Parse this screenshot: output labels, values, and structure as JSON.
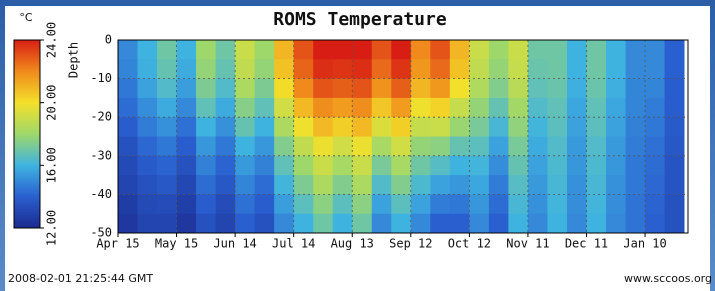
{
  "chart_data": {
    "type": "heatmap",
    "title": "ROMS Temperature",
    "ylabel": "Depth",
    "colorbar_label": "°C",
    "timestamp": "2008-02-01 21:25:44 GMT",
    "source": "www.sccoos.org",
    "x": [
      5,
      15,
      25,
      35,
      45,
      55,
      65,
      75,
      85,
      95,
      105,
      115,
      125,
      135,
      145,
      155,
      165,
      175,
      185,
      195,
      205,
      215,
      225,
      235,
      245,
      255,
      265,
      275,
      285
    ],
    "y": [
      -2.5,
      -7.5,
      -12.5,
      -17.5,
      -22.5,
      -27.5,
      -32.5,
      -37.5,
      -42.5,
      -47.5
    ],
    "values": [
      [
        15,
        14.9,
        14.6,
        14.3,
        13.9,
        13.5,
        13.2,
        13,
        12.7,
        12.5
      ],
      [
        16,
        15.9,
        15.6,
        15.1,
        14.7,
        14.2,
        13.8,
        13.5,
        13.2,
        13
      ],
      [
        17,
        16.8,
        16.4,
        15.8,
        15.2,
        14.6,
        14.1,
        13.7,
        13.3,
        13
      ],
      [
        16,
        15.8,
        15.5,
        15,
        14.4,
        13.9,
        13.5,
        13.1,
        12.8,
        12.5
      ],
      [
        18,
        17.8,
        17.3,
        16.7,
        16,
        15.3,
        14.8,
        14.3,
        13.9,
        13.5
      ],
      [
        17,
        16.8,
        16.4,
        15.8,
        15.2,
        14.6,
        14.1,
        13.7,
        13.3,
        13
      ],
      [
        19,
        18.8,
        18.3,
        17.5,
        16.8,
        16,
        15.4,
        14.9,
        14.4,
        14
      ],
      [
        18,
        17.8,
        17.3,
        16.7,
        16,
        15.3,
        14.8,
        14.3,
        13.9,
        13.5
      ],
      [
        21,
        20.7,
        20.1,
        19.2,
        18.3,
        17.4,
        16.7,
        16.1,
        15.5,
        15
      ],
      [
        23,
        22.7,
        22,
        20.9,
        19.9,
        18.8,
        18,
        17.3,
        16.6,
        16
      ],
      [
        24,
        23.7,
        23,
        21.9,
        20.9,
        19.8,
        19,
        18.3,
        17.6,
        17
      ],
      [
        24,
        23.6,
        22.8,
        21.6,
        20.4,
        19.2,
        18.2,
        17.4,
        16.6,
        16
      ],
      [
        24,
        23.7,
        23,
        21.9,
        20.9,
        19.8,
        19,
        18.3,
        17.6,
        17
      ],
      [
        23,
        22.6,
        21.8,
        20.6,
        19.4,
        18.2,
        17.2,
        16.4,
        15.6,
        15
      ],
      [
        24,
        23.6,
        22.8,
        21.6,
        20.4,
        19.2,
        18.2,
        17.4,
        16.6,
        16
      ],
      [
        22,
        21.7,
        21,
        19.9,
        18.9,
        17.8,
        17,
        16.3,
        15.6,
        15
      ],
      [
        23,
        22.6,
        21.7,
        20.3,
        19,
        17.6,
        16.5,
        15.6,
        14.7,
        14
      ],
      [
        21,
        20.7,
        20,
        18.9,
        17.9,
        16.8,
        16,
        15.3,
        14.6,
        14
      ],
      [
        19,
        18.8,
        18.4,
        17.8,
        17.2,
        16.6,
        16.1,
        15.7,
        15.3,
        15
      ],
      [
        18,
        17.8,
        17.4,
        16.8,
        16.2,
        15.6,
        15.1,
        14.7,
        14.3,
        14
      ],
      [
        19,
        18.9,
        18.6,
        18.1,
        17.7,
        17.2,
        16.8,
        16.5,
        16.2,
        16
      ],
      [
        17,
        16.9,
        16.7,
        16.4,
        16.1,
        15.8,
        15.6,
        15.4,
        15.2,
        15
      ],
      [
        17,
        17,
        16.9,
        16.7,
        16.6,
        16.4,
        16.3,
        16.2,
        16.1,
        16
      ],
      [
        16,
        16,
        15.9,
        15.7,
        15.6,
        15.4,
        15.3,
        15.2,
        15.1,
        15
      ],
      [
        17,
        17,
        16.9,
        16.7,
        16.6,
        16.4,
        16.3,
        16.2,
        16.1,
        16
      ],
      [
        16,
        16,
        15.9,
        15.7,
        15.6,
        15.4,
        15.3,
        15.2,
        15.1,
        15
      ],
      [
        15,
        15,
        14.9,
        14.9,
        14.8,
        14.7,
        14.6,
        14.6,
        14.5,
        14.5
      ],
      [
        15,
        15,
        14.9,
        14.7,
        14.6,
        14.4,
        14.3,
        14.2,
        14.1,
        14
      ],
      [
        14,
        14,
        13.9,
        13.9,
        13.8,
        13.7,
        13.6,
        13.6,
        13.5,
        13.5
      ]
    ],
    "xlim": [
      0,
      292
    ],
    "xticks": [
      {
        "value": 0,
        "label": "Apr 15"
      },
      {
        "value": 30,
        "label": "May 15"
      },
      {
        "value": 60,
        "label": "Jun 14"
      },
      {
        "value": 90,
        "label": "Jul 14"
      },
      {
        "value": 120,
        "label": "Aug 13"
      },
      {
        "value": 150,
        "label": "Sep 12"
      },
      {
        "value": 180,
        "label": "Oct 12"
      },
      {
        "value": 210,
        "label": "Nov 11"
      },
      {
        "value": 240,
        "label": "Dec 11"
      },
      {
        "value": 270,
        "label": "Jan 10"
      }
    ],
    "ylim": [
      -50,
      0
    ],
    "yticks": [
      0,
      -10,
      -20,
      -30,
      -40,
      -50
    ],
    "zlim": [
      12,
      24
    ],
    "zticks": [
      {
        "value": 12,
        "label": "12.00"
      },
      {
        "value": 16,
        "label": "16.00"
      },
      {
        "value": 20,
        "label": "20.00"
      },
      {
        "value": 24,
        "label": "24.00"
      }
    ],
    "colorscale": [
      "#1b2a8f",
      "#2a5fd0",
      "#3fb3e0",
      "#9fd86a",
      "#f3e02a",
      "#f08a1c",
      "#d81e14"
    ],
    "grid": true
  }
}
